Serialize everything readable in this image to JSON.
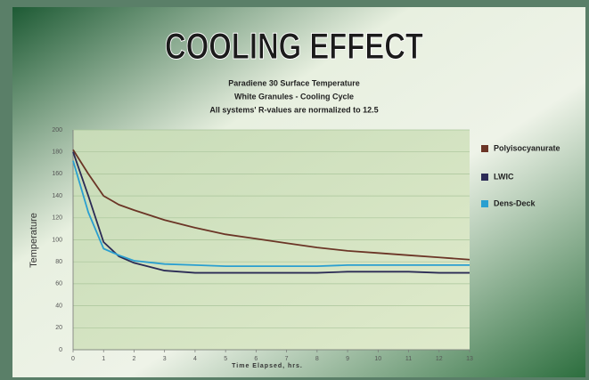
{
  "chart_data": {
    "type": "line",
    "title": "COOLING EFFECT",
    "subtitle": [
      "Paradiene 30 Surface Temperature",
      "White Granules - Cooling Cycle",
      "All systems' R-values are normalized to 12.5"
    ],
    "xlabel": "Time Elapsed, hrs.",
    "ylabel": "Temperature",
    "x": [
      0,
      0.5,
      1,
      1.5,
      2,
      3,
      4,
      5,
      6,
      7,
      8,
      9,
      10,
      11,
      12,
      13
    ],
    "series": [
      {
        "name": "Polyisocyanurate",
        "color": "#6b3526",
        "values": [
          182,
          160,
          140,
          132,
          127,
          118,
          111,
          105,
          101,
          97,
          93,
          90,
          88,
          86,
          84,
          82
        ]
      },
      {
        "name": "LWIC",
        "color": "#2b2b55",
        "values": [
          180,
          140,
          98,
          85,
          79,
          72,
          70,
          70,
          70,
          70,
          70,
          71,
          71,
          71,
          70,
          70
        ]
      },
      {
        "name": "Dens-Deck",
        "color": "#2a9fd0",
        "values": [
          172,
          125,
          92,
          86,
          81,
          78,
          77,
          76,
          76,
          76,
          76,
          77,
          77,
          77,
          77,
          77
        ]
      }
    ],
    "xlim": [
      0,
      13
    ],
    "xticks": [
      0,
      1,
      2,
      3,
      4,
      5,
      6,
      7,
      8,
      9,
      10,
      11,
      12,
      13
    ],
    "ylim": [
      0,
      200
    ],
    "yticks": [
      0,
      20,
      40,
      60,
      80,
      100,
      120,
      140,
      160,
      180,
      200
    ],
    "grid": true,
    "legend": "right"
  }
}
